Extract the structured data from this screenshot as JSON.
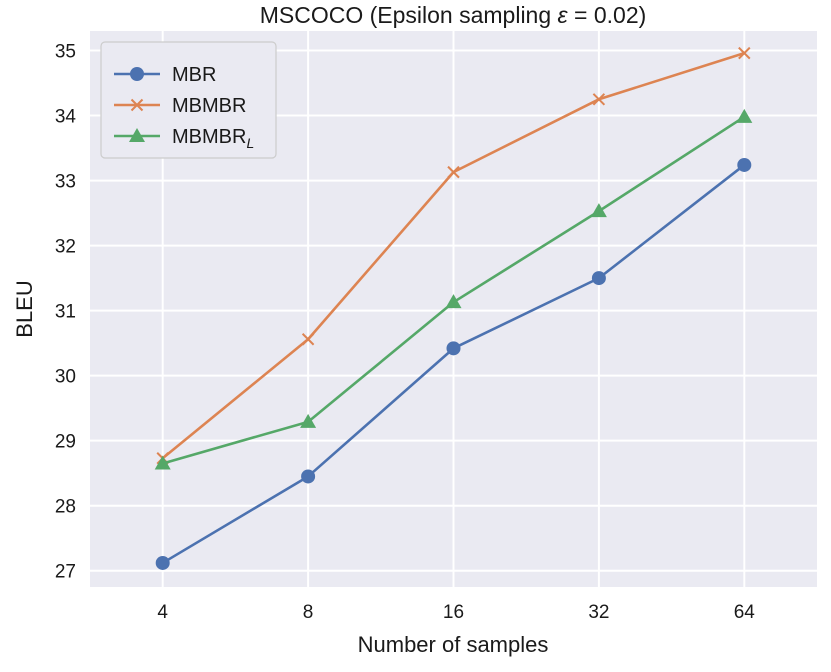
{
  "chart_data": {
    "type": "line",
    "title_prefix": "MSCOCO (Epsilon sampling ",
    "title_symbol": "ε",
    "title_suffix": " = 0.02)",
    "xlabel": "Number of samples",
    "ylabel": "BLEU",
    "x_scale": "log2",
    "x": [
      4,
      8,
      16,
      32,
      64
    ],
    "x_tick_labels": [
      "4",
      "8",
      "16",
      "32",
      "64"
    ],
    "y_ticks": [
      27,
      28,
      29,
      30,
      31,
      32,
      33,
      34,
      35
    ],
    "ylim": [
      26.75,
      35.3
    ],
    "grid": true,
    "legend_position": "top-left",
    "series": [
      {
        "name": "MBR",
        "name_sub": "",
        "marker": "circle",
        "color": "#4c72b0",
        "values": [
          27.12,
          28.45,
          30.42,
          31.5,
          33.24
        ]
      },
      {
        "name": "MBMBR",
        "name_sub": "",
        "marker": "x",
        "color": "#dd8452",
        "values": [
          28.73,
          30.56,
          33.13,
          34.25,
          34.96
        ]
      },
      {
        "name": "MBMBR",
        "name_sub": "L",
        "marker": "triangle",
        "color": "#55a868",
        "values": [
          28.65,
          29.29,
          31.13,
          32.53,
          33.98
        ]
      }
    ]
  }
}
